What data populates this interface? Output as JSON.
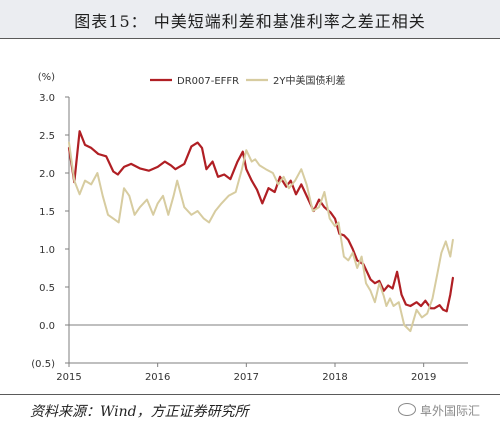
{
  "title": "图表15：   中美短端利差和基准利率之差正相关",
  "source": "资料来源：Wind，方正证券研究所",
  "watermark": "阜外国际汇",
  "chart_data": {
    "type": "line",
    "ylabel": "(%)",
    "ylim": [
      -0.5,
      3.0
    ],
    "yticks": [
      -0.5,
      0.0,
      0.5,
      1.0,
      1.5,
      2.0,
      2.5,
      3.0
    ],
    "ytick_labels": [
      "(0.5)",
      "0.0",
      "0.5",
      "1.0",
      "1.5",
      "2.0",
      "2.5",
      "3.0"
    ],
    "xlim": [
      2015.0,
      2019.5
    ],
    "xticks": [
      2015,
      2016,
      2017,
      2018,
      2019
    ],
    "xtick_labels": [
      "2015",
      "2016",
      "2017",
      "2018",
      "2019"
    ],
    "grid": false,
    "legend_position": "top-center",
    "series": [
      {
        "name": "DR007-EFFR",
        "color": "#b01f24",
        "x": [
          2015.0,
          2015.06,
          2015.12,
          2015.18,
          2015.25,
          2015.33,
          2015.42,
          2015.5,
          2015.55,
          2015.62,
          2015.7,
          2015.8,
          2015.9,
          2016.0,
          2016.08,
          2016.15,
          2016.2,
          2016.3,
          2016.38,
          2016.45,
          2016.5,
          2016.55,
          2016.62,
          2016.68,
          2016.75,
          2016.82,
          2016.9,
          2016.96,
          2017.0,
          2017.06,
          2017.12,
          2017.18,
          2017.25,
          2017.32,
          2017.38,
          2017.45,
          2017.5,
          2017.56,
          2017.62,
          2017.7,
          2017.76,
          2017.82,
          2017.88,
          2017.95,
          2018.0,
          2018.05,
          2018.1,
          2018.15,
          2018.2,
          2018.25,
          2018.32,
          2018.4,
          2018.45,
          2018.5,
          2018.55,
          2018.6,
          2018.65,
          2018.7,
          2018.75,
          2018.8,
          2018.85,
          2018.92,
          2018.97,
          2019.02,
          2019.08,
          2019.12,
          2019.18,
          2019.22,
          2019.26,
          2019.3,
          2019.33
        ],
        "values": [
          2.33,
          1.88,
          2.55,
          2.37,
          2.33,
          2.25,
          2.22,
          2.02,
          1.98,
          2.08,
          2.12,
          2.06,
          2.03,
          2.08,
          2.15,
          2.1,
          2.05,
          2.12,
          2.35,
          2.4,
          2.33,
          2.05,
          2.15,
          1.95,
          1.98,
          1.92,
          2.15,
          2.28,
          2.05,
          1.9,
          1.78,
          1.6,
          1.8,
          1.75,
          1.95,
          1.82,
          1.9,
          1.72,
          1.85,
          1.65,
          1.5,
          1.65,
          1.55,
          1.48,
          1.4,
          1.2,
          1.18,
          1.12,
          1.0,
          0.85,
          0.8,
          0.6,
          0.55,
          0.58,
          0.45,
          0.52,
          0.48,
          0.7,
          0.4,
          0.27,
          0.25,
          0.3,
          0.25,
          0.32,
          0.22,
          0.22,
          0.26,
          0.2,
          0.18,
          0.4,
          0.62
        ]
      },
      {
        "name": "2Y中美国债利差",
        "color": "#d7cca0",
        "x": [
          2015.0,
          2015.06,
          2015.12,
          2015.18,
          2015.25,
          2015.32,
          2015.38,
          2015.44,
          2015.5,
          2015.56,
          2015.62,
          2015.68,
          2015.74,
          2015.8,
          2015.88,
          2015.95,
          2016.0,
          2016.06,
          2016.12,
          2016.18,
          2016.22,
          2016.3,
          2016.38,
          2016.45,
          2016.52,
          2016.58,
          2016.65,
          2016.72,
          2016.8,
          2016.88,
          2016.95,
          2017.0,
          2017.06,
          2017.1,
          2017.15,
          2017.22,
          2017.3,
          2017.36,
          2017.42,
          2017.48,
          2017.55,
          2017.62,
          2017.68,
          2017.75,
          2017.82,
          2017.88,
          2017.94,
          2018.0,
          2018.04,
          2018.1,
          2018.15,
          2018.2,
          2018.25,
          2018.3,
          2018.35,
          2018.4,
          2018.45,
          2018.5,
          2018.55,
          2018.58,
          2018.62,
          2018.66,
          2018.72,
          2018.78,
          2018.85,
          2018.92,
          2018.98,
          2019.04,
          2019.1,
          2019.15,
          2019.2,
          2019.25,
          2019.3,
          2019.33
        ],
        "values": [
          2.4,
          1.9,
          1.72,
          1.9,
          1.85,
          2.0,
          1.7,
          1.45,
          1.4,
          1.35,
          1.8,
          1.7,
          1.45,
          1.55,
          1.65,
          1.45,
          1.6,
          1.7,
          1.45,
          1.7,
          1.9,
          1.55,
          1.45,
          1.5,
          1.4,
          1.35,
          1.5,
          1.6,
          1.7,
          1.75,
          2.05,
          2.3,
          2.15,
          2.18,
          2.1,
          2.05,
          2.0,
          1.85,
          1.95,
          1.8,
          1.9,
          2.05,
          1.85,
          1.5,
          1.55,
          1.75,
          1.4,
          1.3,
          1.35,
          0.9,
          0.85,
          0.95,
          0.75,
          0.9,
          0.55,
          0.45,
          0.3,
          0.55,
          0.38,
          0.25,
          0.35,
          0.25,
          0.3,
          0.0,
          -0.08,
          0.2,
          0.1,
          0.15,
          0.35,
          0.65,
          0.95,
          1.1,
          0.9,
          1.12
        ]
      }
    ]
  }
}
